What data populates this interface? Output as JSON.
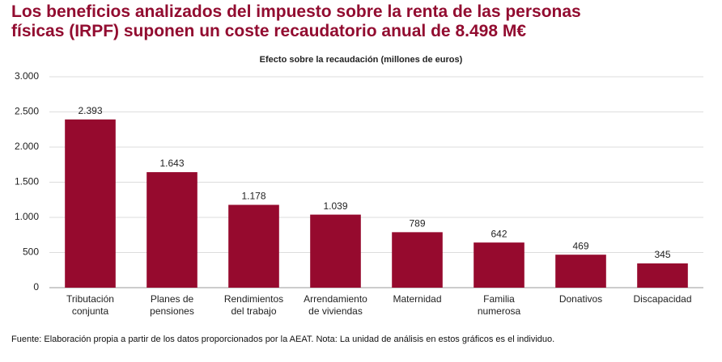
{
  "chart_data": {
    "type": "bar",
    "title": "Los beneficios analizados del impuesto sobre la renta de las personas físicas (IRPF) suponen un coste recaudatorio anual de 8.498 M€",
    "subtitle": "Efecto sobre la recaudación (millones de euros)",
    "categories": [
      [
        "Tributación",
        "conjunta"
      ],
      [
        "Planes de",
        "pensiones"
      ],
      [
        "Rendimientos",
        "del trabajo"
      ],
      [
        "Arrendamiento",
        "de viviendas"
      ],
      [
        "Maternidad"
      ],
      [
        "Familia",
        "numerosa"
      ],
      [
        "Donativos"
      ],
      [
        "Discapacidad"
      ]
    ],
    "values": [
      2393,
      1643,
      1178,
      1039,
      789,
      642,
      469,
      345
    ],
    "value_labels": [
      "2.393",
      "1.643",
      "1.178",
      "1.039",
      "789",
      "642",
      "469",
      "345"
    ],
    "color": "#960a2e",
    "ylim": [
      0,
      3000
    ],
    "yticks": [
      0,
      500,
      {
        "value": 1000,
        "label": "1.000"
      },
      {
        "value": 1500,
        "label": "1.500"
      },
      {
        "value": 2000,
        "label": "2.000"
      },
      {
        "value": 2500,
        "label": "2.500"
      },
      {
        "value": 3000,
        "label": "3.000"
      }
    ],
    "grid": true,
    "source": "Fuente: Elaboración propia a partir de los datos proporcionados por la AEAT. Nota: La unidad de análisis en estos gráficos es el individuo."
  }
}
